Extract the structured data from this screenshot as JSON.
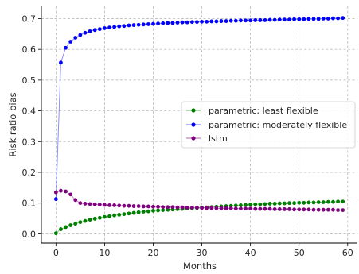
{
  "chart_data": {
    "type": "line",
    "title": "",
    "xlabel": "Months",
    "ylabel": "Risk ratio bias",
    "xlim": [
      -3,
      62
    ],
    "ylim": [
      -0.03,
      0.74
    ],
    "xticks": [
      "0",
      "10",
      "20",
      "30",
      "40",
      "50",
      "60"
    ],
    "xtick_values": [
      0,
      10,
      20,
      30,
      40,
      50,
      60
    ],
    "yticks": [
      "0.0",
      "0.1",
      "0.2",
      "0.3",
      "0.4",
      "0.5",
      "0.6",
      "0.7"
    ],
    "ytick_values": [
      0,
      0.1,
      0.2,
      0.3,
      0.4,
      0.5,
      0.6,
      0.7
    ],
    "grid": true,
    "legend_position": "center-right",
    "x": [
      0,
      1,
      2,
      3,
      4,
      5,
      6,
      7,
      8,
      9,
      10,
      11,
      12,
      13,
      14,
      15,
      16,
      17,
      18,
      19,
      20,
      21,
      22,
      23,
      24,
      25,
      26,
      27,
      28,
      29,
      30,
      31,
      32,
      33,
      34,
      35,
      36,
      37,
      38,
      39,
      40,
      41,
      42,
      43,
      44,
      45,
      46,
      47,
      48,
      49,
      50,
      51,
      52,
      53,
      54,
      55,
      56,
      57,
      58,
      59
    ],
    "series": [
      {
        "name": "parametric: least flexible",
        "color": "#008000",
        "values": [
          0.002,
          0.015,
          0.022,
          0.028,
          0.033,
          0.038,
          0.042,
          0.046,
          0.049,
          0.052,
          0.055,
          0.057,
          0.06,
          0.062,
          0.064,
          0.066,
          0.068,
          0.07,
          0.072,
          0.073,
          0.075,
          0.076,
          0.077,
          0.078,
          0.079,
          0.08,
          0.081,
          0.082,
          0.083,
          0.084,
          0.085,
          0.086,
          0.087,
          0.088,
          0.089,
          0.09,
          0.091,
          0.092,
          0.093,
          0.094,
          0.095,
          0.096,
          0.096,
          0.097,
          0.098,
          0.098,
          0.099,
          0.099,
          0.1,
          0.1,
          0.101,
          0.101,
          0.102,
          0.102,
          0.103,
          0.103,
          0.104,
          0.104,
          0.105,
          0.105
        ]
      },
      {
        "name": "parametric: moderately flexible",
        "color": "#0000ff",
        "values": [
          0.113,
          0.557,
          0.605,
          0.625,
          0.638,
          0.647,
          0.654,
          0.659,
          0.663,
          0.666,
          0.669,
          0.671,
          0.673,
          0.675,
          0.676,
          0.678,
          0.679,
          0.68,
          0.681,
          0.682,
          0.683,
          0.684,
          0.685,
          0.686,
          0.686,
          0.687,
          0.688,
          0.688,
          0.689,
          0.689,
          0.69,
          0.69,
          0.691,
          0.691,
          0.692,
          0.692,
          0.693,
          0.693,
          0.694,
          0.694,
          0.694,
          0.695,
          0.695,
          0.695,
          0.696,
          0.696,
          0.697,
          0.697,
          0.697,
          0.698,
          0.698,
          0.698,
          0.699,
          0.699,
          0.699,
          0.7,
          0.7,
          0.701,
          0.701,
          0.702
        ]
      },
      {
        "name": "lstm",
        "color": "#800080",
        "values": [
          0.135,
          0.14,
          0.138,
          0.128,
          0.11,
          0.1,
          0.098,
          0.097,
          0.096,
          0.095,
          0.094,
          0.093,
          0.093,
          0.092,
          0.091,
          0.091,
          0.09,
          0.09,
          0.089,
          0.089,
          0.088,
          0.088,
          0.087,
          0.087,
          0.087,
          0.086,
          0.086,
          0.085,
          0.085,
          0.085,
          0.084,
          0.084,
          0.084,
          0.083,
          0.083,
          0.083,
          0.083,
          0.082,
          0.082,
          0.082,
          0.082,
          0.081,
          0.081,
          0.081,
          0.081,
          0.08,
          0.08,
          0.08,
          0.08,
          0.079,
          0.079,
          0.079,
          0.079,
          0.078,
          0.078,
          0.078,
          0.078,
          0.078,
          0.077,
          0.077
        ]
      }
    ]
  }
}
